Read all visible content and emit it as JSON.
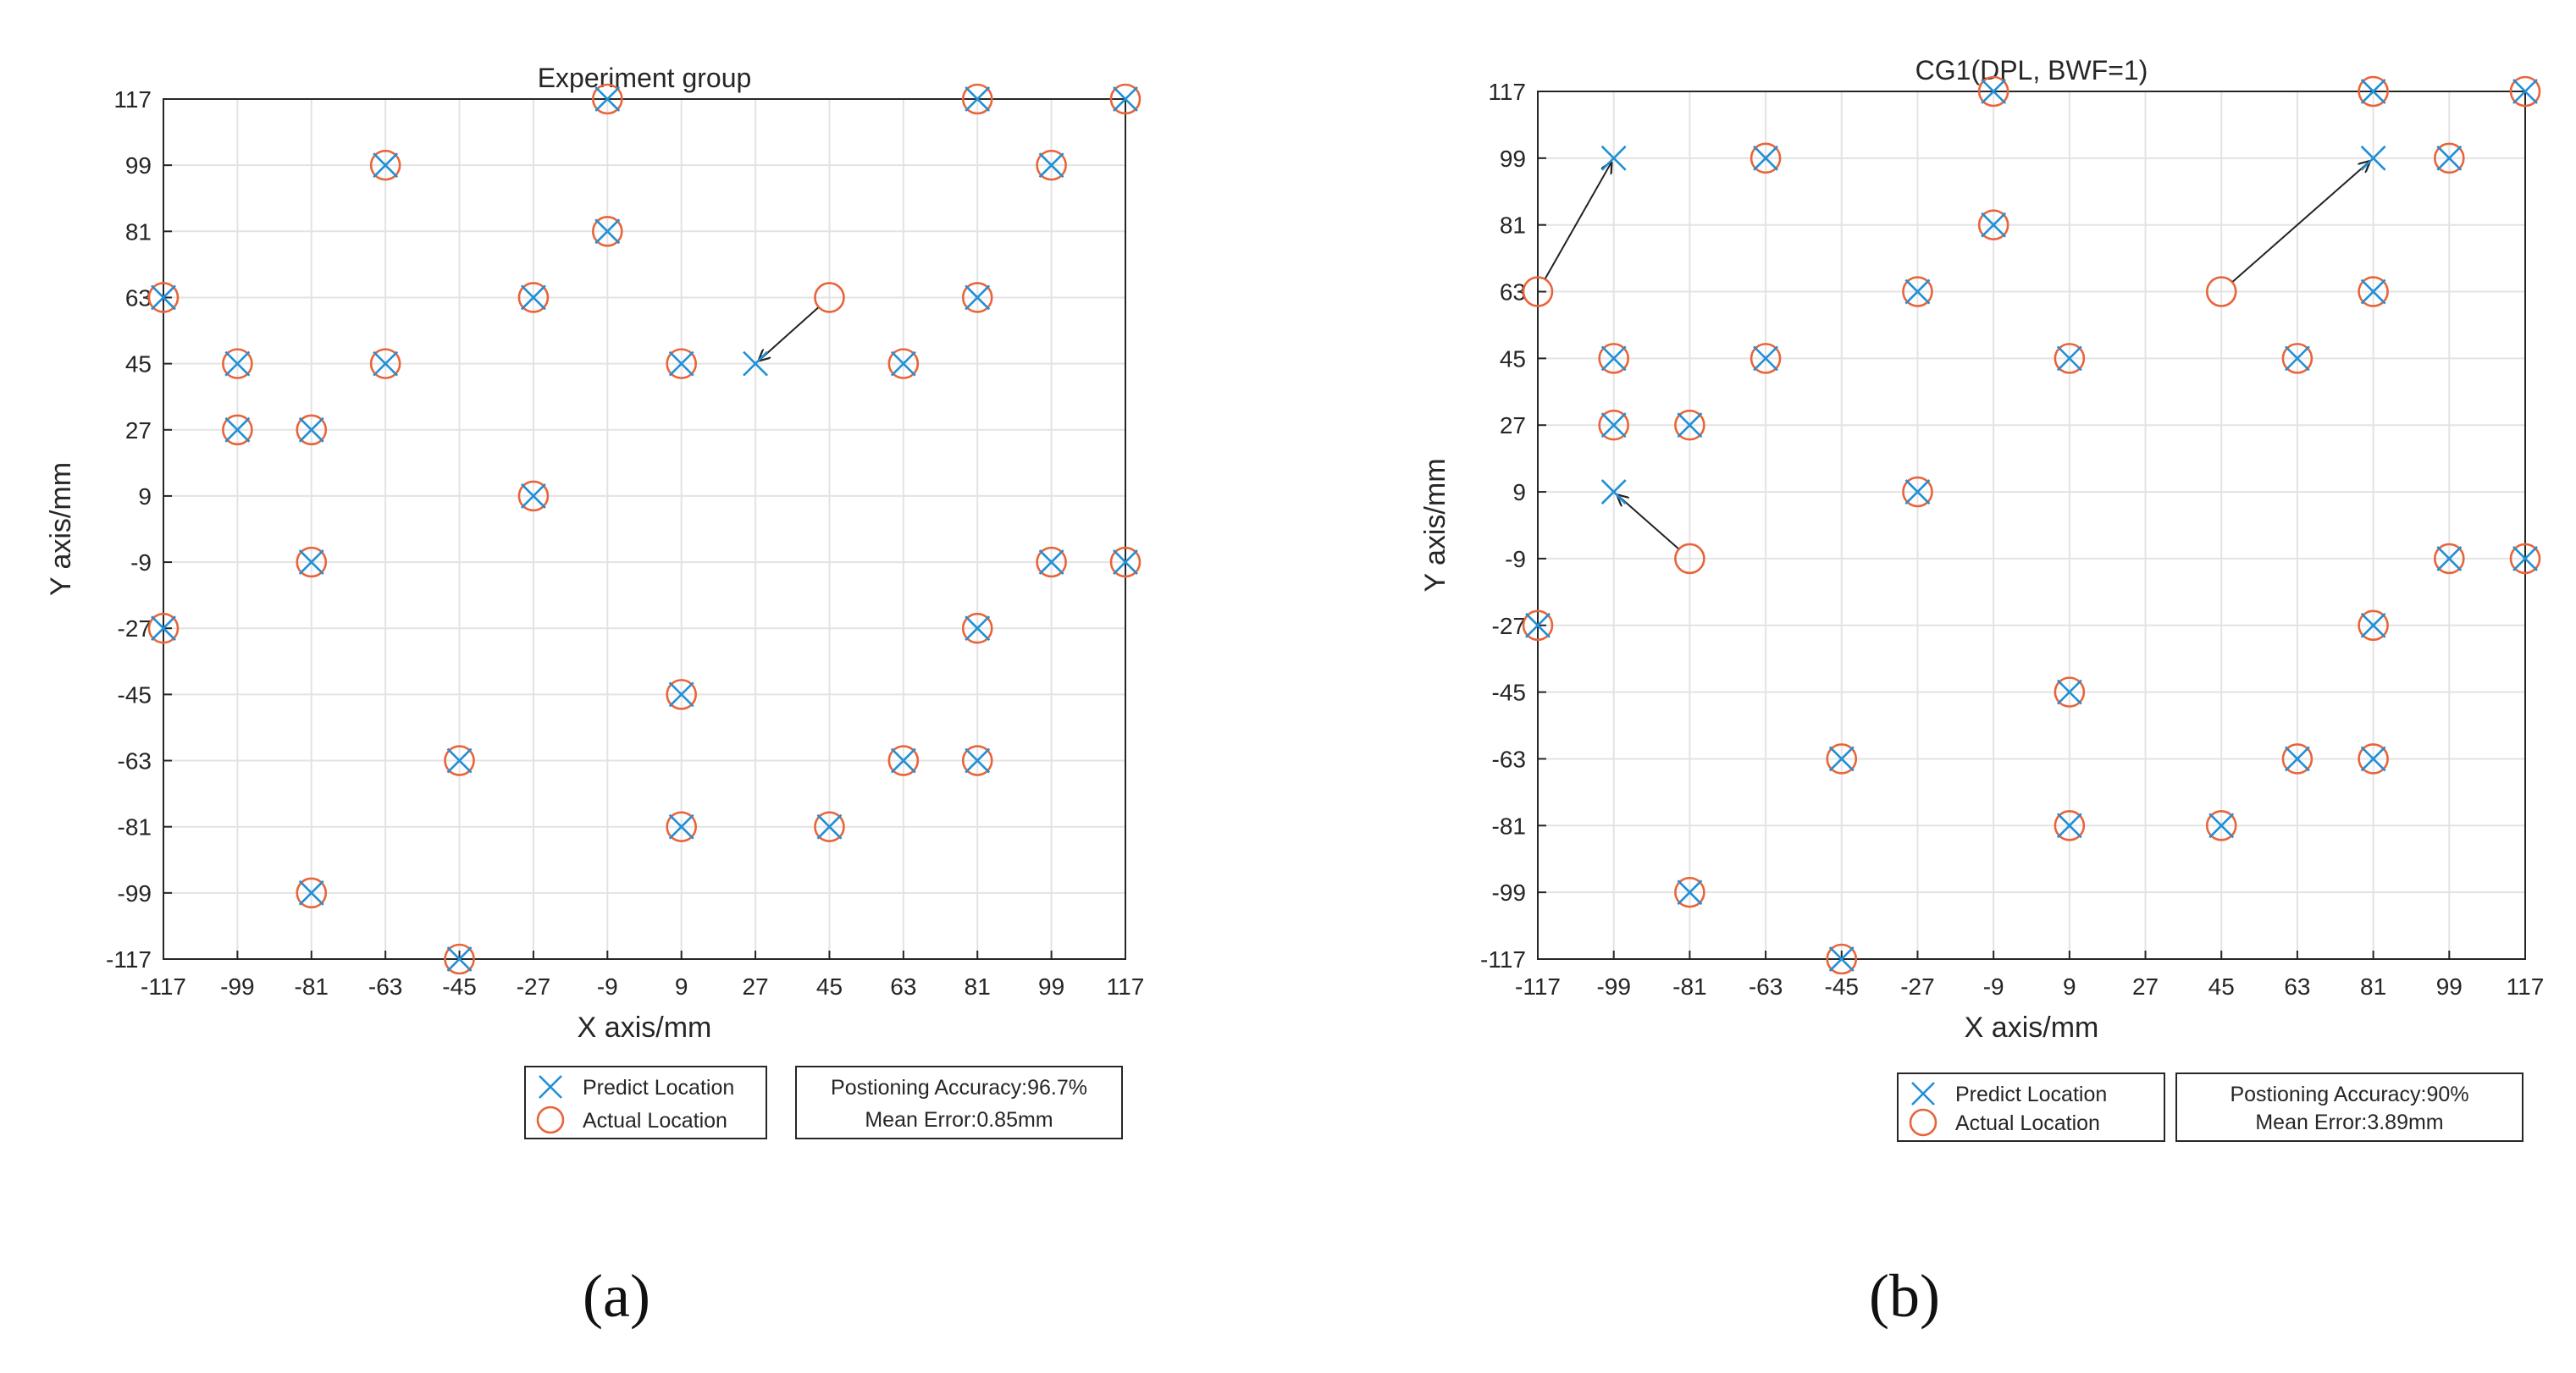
{
  "colors": {
    "predict": "#1f8fd6",
    "actual": "#e8643a",
    "arrow": "#222222",
    "grid": "#e3e3e3",
    "axis": "#262626",
    "text": "#262626"
  },
  "chart_data": [
    {
      "panel_label": "(a)",
      "type": "scatter",
      "title": "Experiment group",
      "xlabel": "X axis/mm",
      "ylabel": "Y axis/mm",
      "xlim": [
        -117,
        117
      ],
      "ylim": [
        -117,
        117
      ],
      "grid": true,
      "ticks": [
        "-117",
        "-99",
        "-81",
        "-63",
        "-45",
        "-27",
        "-9",
        "9",
        "27",
        "45",
        "63",
        "81",
        "99",
        "117"
      ],
      "legend": {
        "position": "bottom-center",
        "predict": "Predict Location",
        "actual": "Actual Location"
      },
      "info": {
        "accuracy": "Postioning Accuracy:96.7%",
        "error": "Mean Error:0.85mm"
      },
      "series": [
        {
          "name": "Predict Location",
          "marker": "x",
          "points": [
            [
              -117,
              63
            ],
            [
              -99,
              45
            ],
            [
              -99,
              27
            ],
            [
              -81,
              27
            ],
            [
              -81,
              -9
            ],
            [
              -81,
              -99
            ],
            [
              -63,
              99
            ],
            [
              -63,
              45
            ],
            [
              -45,
              -63
            ],
            [
              -45,
              -117
            ],
            [
              -27,
              63
            ],
            [
              -27,
              9
            ],
            [
              -9,
              117
            ],
            [
              -9,
              81
            ],
            [
              9,
              45
            ],
            [
              9,
              -45
            ],
            [
              9,
              -81
            ],
            [
              27,
              45
            ],
            [
              45,
              -81
            ],
            [
              63,
              45
            ],
            [
              63,
              -63
            ],
            [
              81,
              117
            ],
            [
              81,
              63
            ],
            [
              81,
              -27
            ],
            [
              81,
              -63
            ],
            [
              99,
              99
            ],
            [
              99,
              -9
            ],
            [
              117,
              117
            ],
            [
              117,
              -9
            ],
            [
              -117,
              -27
            ]
          ]
        },
        {
          "name": "Actual Location",
          "marker": "o",
          "points": [
            [
              -117,
              63
            ],
            [
              -99,
              45
            ],
            [
              -99,
              27
            ],
            [
              -81,
              27
            ],
            [
              -81,
              -9
            ],
            [
              -81,
              -99
            ],
            [
              -63,
              99
            ],
            [
              -63,
              45
            ],
            [
              -45,
              -63
            ],
            [
              -45,
              -117
            ],
            [
              -27,
              63
            ],
            [
              -27,
              9
            ],
            [
              -9,
              117
            ],
            [
              -9,
              81
            ],
            [
              9,
              45
            ],
            [
              9,
              -45
            ],
            [
              9,
              -81
            ],
            [
              45,
              63
            ],
            [
              45,
              -81
            ],
            [
              63,
              45
            ],
            [
              63,
              -63
            ],
            [
              81,
              117
            ],
            [
              81,
              63
            ],
            [
              81,
              -27
            ],
            [
              81,
              -63
            ],
            [
              99,
              99
            ],
            [
              99,
              -9
            ],
            [
              117,
              117
            ],
            [
              117,
              -9
            ],
            [
              -117,
              -27
            ]
          ]
        }
      ],
      "errors": [
        {
          "from": [
            45,
            63
          ],
          "to": [
            27,
            45
          ]
        }
      ]
    },
    {
      "panel_label": "(b)",
      "type": "scatter",
      "title": "CG1(DPL, BWF=1)",
      "xlabel": "X axis/mm",
      "ylabel": "Y axis/mm",
      "xlim": [
        -117,
        117
      ],
      "ylim": [
        -117,
        117
      ],
      "grid": true,
      "ticks": [
        "-117",
        "-99",
        "-81",
        "-63",
        "-45",
        "-27",
        "-9",
        "9",
        "27",
        "45",
        "63",
        "81",
        "99",
        "117"
      ],
      "legend": {
        "position": "bottom-center",
        "predict": "Predict Location",
        "actual": "Actual Location"
      },
      "info": {
        "accuracy": "Postioning Accuracy:90%",
        "error": "Mean Error:3.89mm"
      },
      "series": [
        {
          "name": "Predict Location",
          "marker": "x",
          "points": [
            [
              -99,
              99
            ],
            [
              -99,
              45
            ],
            [
              -99,
              27
            ],
            [
              -81,
              27
            ],
            [
              -99,
              9
            ],
            [
              -81,
              -99
            ],
            [
              -63,
              99
            ],
            [
              -63,
              45
            ],
            [
              -45,
              -63
            ],
            [
              -45,
              -117
            ],
            [
              -27,
              63
            ],
            [
              -27,
              9
            ],
            [
              -9,
              117
            ],
            [
              -9,
              81
            ],
            [
              9,
              45
            ],
            [
              9,
              -45
            ],
            [
              9,
              -81
            ],
            [
              45,
              -81
            ],
            [
              63,
              45
            ],
            [
              63,
              -63
            ],
            [
              81,
              117
            ],
            [
              81,
              99
            ],
            [
              81,
              63
            ],
            [
              81,
              -27
            ],
            [
              81,
              -63
            ],
            [
              99,
              99
            ],
            [
              99,
              -9
            ],
            [
              117,
              117
            ],
            [
              117,
              -9
            ],
            [
              -117,
              -27
            ]
          ]
        },
        {
          "name": "Actual Location",
          "marker": "o",
          "points": [
            [
              -117,
              63
            ],
            [
              -99,
              45
            ],
            [
              -99,
              27
            ],
            [
              -81,
              27
            ],
            [
              -81,
              -9
            ],
            [
              -81,
              -99
            ],
            [
              -63,
              99
            ],
            [
              -63,
              45
            ],
            [
              -45,
              -63
            ],
            [
              -45,
              -117
            ],
            [
              -27,
              63
            ],
            [
              -27,
              9
            ],
            [
              -9,
              117
            ],
            [
              -9,
              81
            ],
            [
              9,
              45
            ],
            [
              9,
              -45
            ],
            [
              9,
              -81
            ],
            [
              45,
              63
            ],
            [
              45,
              -81
            ],
            [
              63,
              45
            ],
            [
              63,
              -63
            ],
            [
              81,
              117
            ],
            [
              81,
              63
            ],
            [
              81,
              -27
            ],
            [
              81,
              -63
            ],
            [
              99,
              99
            ],
            [
              99,
              -9
            ],
            [
              117,
              117
            ],
            [
              117,
              -9
            ],
            [
              -117,
              -27
            ]
          ]
        }
      ],
      "errors": [
        {
          "from": [
            -117,
            63
          ],
          "to": [
            -99,
            99
          ]
        },
        {
          "from": [
            -81,
            -9
          ],
          "to": [
            -99,
            9
          ]
        },
        {
          "from": [
            45,
            63
          ],
          "to": [
            81,
            99
          ]
        }
      ]
    }
  ]
}
